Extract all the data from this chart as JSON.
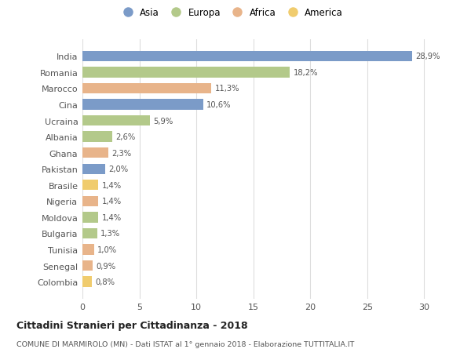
{
  "countries": [
    "India",
    "Romania",
    "Marocco",
    "Cina",
    "Ucraina",
    "Albania",
    "Ghana",
    "Pakistan",
    "Brasile",
    "Nigeria",
    "Moldova",
    "Bulgaria",
    "Tunisia",
    "Senegal",
    "Colombia"
  ],
  "values": [
    28.9,
    18.2,
    11.3,
    10.6,
    5.9,
    2.6,
    2.3,
    2.0,
    1.4,
    1.4,
    1.4,
    1.3,
    1.0,
    0.9,
    0.8
  ],
  "labels": [
    "28,9%",
    "18,2%",
    "11,3%",
    "10,6%",
    "5,9%",
    "2,6%",
    "2,3%",
    "2,0%",
    "1,4%",
    "1,4%",
    "1,4%",
    "1,3%",
    "1,0%",
    "0,9%",
    "0,8%"
  ],
  "continents": [
    "Asia",
    "Europa",
    "Africa",
    "Asia",
    "Europa",
    "Europa",
    "Africa",
    "Asia",
    "America",
    "Africa",
    "Europa",
    "Europa",
    "Africa",
    "Africa",
    "America"
  ],
  "colors": {
    "Asia": "#7b9bc8",
    "Europa": "#b3c98a",
    "Africa": "#e8b48a",
    "America": "#f0cc6e"
  },
  "title": "Cittadini Stranieri per Cittadinanza - 2018",
  "subtitle": "COMUNE DI MARMIROLO (MN) - Dati ISTAT al 1° gennaio 2018 - Elaborazione TUTTITALIA.IT",
  "xlim": [
    0,
    31
  ],
  "xticks": [
    0,
    5,
    10,
    15,
    20,
    25,
    30
  ],
  "background_color": "#ffffff",
  "grid_color": "#dddddd",
  "bar_height": 0.65
}
